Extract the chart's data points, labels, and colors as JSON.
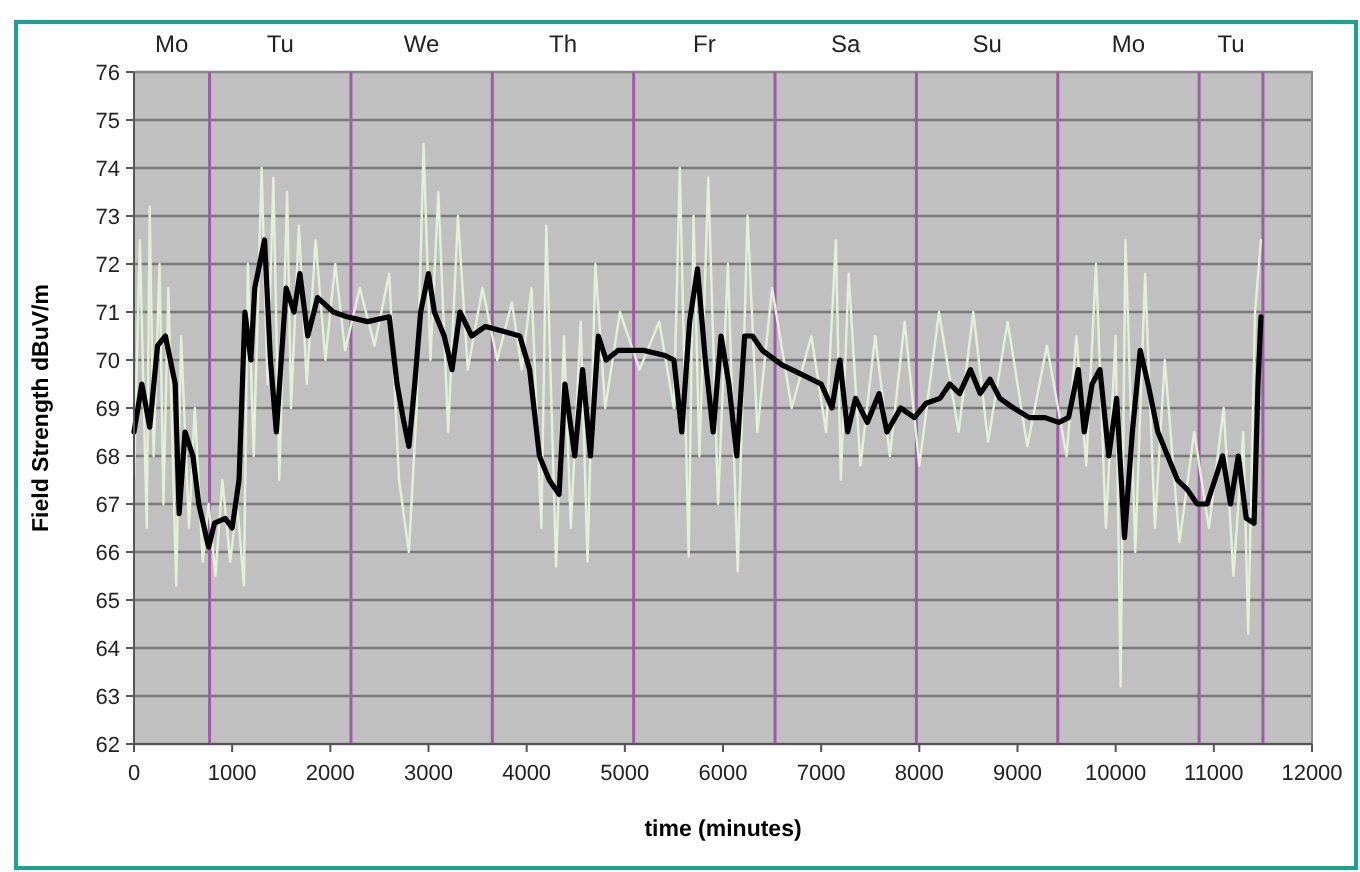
{
  "chart_data": {
    "type": "line",
    "xlabel": "time (minutes)",
    "ylabel": "Field Strength dBuV/m",
    "xlim": [
      0,
      12000
    ],
    "xticks": [
      0,
      1000,
      2000,
      3000,
      4000,
      5000,
      6000,
      7000,
      8000,
      9000,
      10000,
      11000,
      12000
    ],
    "ylim": [
      62,
      76
    ],
    "yticks": [
      62,
      63,
      64,
      65,
      66,
      67,
      68,
      69,
      70,
      71,
      72,
      73,
      74,
      75,
      76
    ],
    "grid": "y",
    "series": [
      {
        "color": "#e2f0d6",
        "x": [
          0,
          60,
          130,
          160,
          200,
          260,
          300,
          350,
          430,
          480,
          560,
          620,
          700,
          760,
          830,
          900,
          980,
          1050,
          1120,
          1160,
          1220,
          1300,
          1360,
          1420,
          1480,
          1560,
          1600,
          1680,
          1760,
          1850,
          1950,
          2050,
          2150,
          2300,
          2450,
          2600,
          2700,
          2800,
          2880,
          2950,
          3020,
          3100,
          3200,
          3300,
          3400,
          3550,
          3700,
          3850,
          3950,
          4050,
          4150,
          4200,
          4300,
          4380,
          4450,
          4550,
          4620,
          4700,
          4800,
          4950,
          5150,
          5350,
          5500,
          5560,
          5650,
          5700,
          5760,
          5850,
          5950,
          6050,
          6150,
          6250,
          6350,
          6500,
          6700,
          6900,
          7050,
          7150,
          7200,
          7280,
          7400,
          7550,
          7700,
          7850,
          8000,
          8200,
          8400,
          8550,
          8700,
          8900,
          9100,
          9300,
          9500,
          9600,
          9700,
          9800,
          9900,
          10000,
          10050,
          10100,
          10200,
          10300,
          10400,
          10500,
          10650,
          10800,
          10950,
          11100,
          11200,
          11300,
          11350,
          11420,
          11480
        ],
        "values": [
          67.5,
          72.5,
          66.5,
          73.2,
          68,
          72,
          67,
          71.5,
          65.3,
          70.5,
          66.5,
          69,
          65.8,
          67,
          65.5,
          67.5,
          65.8,
          67,
          65.3,
          72,
          68,
          74,
          69.5,
          73.8,
          67.5,
          73.5,
          69,
          72.8,
          69.5,
          72.5,
          70,
          72,
          70.2,
          71.5,
          70.3,
          71.8,
          67.5,
          66,
          69,
          74.5,
          70,
          73.5,
          68.5,
          73,
          69.8,
          71.5,
          70,
          71.2,
          69.8,
          71.5,
          66.5,
          72.8,
          65.7,
          70.5,
          66.5,
          70.8,
          65.8,
          72,
          69,
          71,
          69.8,
          70.8,
          69,
          74,
          65.9,
          73,
          68,
          73.8,
          67,
          72,
          65.6,
          73,
          68.5,
          71.5,
          69,
          70.5,
          68.5,
          72.5,
          67.5,
          71.8,
          67.8,
          70.5,
          68,
          70.8,
          67.8,
          71,
          68.5,
          71,
          68.3,
          70.8,
          68.2,
          70.3,
          68,
          70.5,
          67.8,
          72,
          66.5,
          70.5,
          63.2,
          72.5,
          66,
          71.8,
          66.5,
          70,
          66.2,
          68.5,
          66.5,
          69,
          65.5,
          68.5,
          64.3,
          71,
          72.5
        ]
      },
      {
        "color": "#000000",
        "x": [
          0,
          80,
          160,
          240,
          320,
          420,
          460,
          520,
          600,
          660,
          760,
          820,
          930,
          1000,
          1070,
          1130,
          1190,
          1230,
          1330,
          1390,
          1450,
          1550,
          1630,
          1690,
          1770,
          1870,
          2030,
          2170,
          2380,
          2600,
          2680,
          2740,
          2800,
          2860,
          2920,
          3000,
          3060,
          3160,
          3240,
          3320,
          3440,
          3580,
          3760,
          3930,
          4030,
          4130,
          4230,
          4330,
          4390,
          4490,
          4570,
          4650,
          4730,
          4810,
          4930,
          5190,
          5400,
          5500,
          5580,
          5660,
          5740,
          5820,
          5900,
          5980,
          6060,
          6140,
          6220,
          6300,
          6400,
          6600,
          6800,
          7000,
          7110,
          7190,
          7270,
          7350,
          7470,
          7590,
          7670,
          7810,
          7950,
          8070,
          8210,
          8310,
          8410,
          8520,
          8620,
          8720,
          8820,
          8960,
          9120,
          9280,
          9420,
          9520,
          9620,
          9680,
          9760,
          9840,
          9930,
          10010,
          10090,
          10170,
          10250,
          10330,
          10430,
          10530,
          10630,
          10730,
          10830,
          10930,
          11010,
          11090,
          11170,
          11250,
          11330,
          11410,
          11450,
          11480
        ],
        "values": [
          68.5,
          69.5,
          68.6,
          70.3,
          70.5,
          69.5,
          66.8,
          68.5,
          68,
          67,
          66.1,
          66.6,
          66.7,
          66.5,
          67.5,
          71,
          70,
          71.5,
          72.5,
          70,
          68.5,
          71.5,
          71,
          71.8,
          70.5,
          71.3,
          71,
          70.9,
          70.8,
          70.9,
          69.5,
          68.8,
          68.2,
          69.5,
          71,
          71.8,
          71,
          70.5,
          69.8,
          71,
          70.5,
          70.7,
          70.6,
          70.5,
          69.8,
          68,
          67.5,
          67.2,
          69.5,
          68,
          69.8,
          68,
          70.5,
          70,
          70.2,
          70.2,
          70.1,
          70,
          68.5,
          70.8,
          71.9,
          70,
          68.5,
          70.5,
          69.5,
          68,
          70.5,
          70.5,
          70.2,
          69.9,
          69.7,
          69.5,
          69,
          70,
          68.5,
          69.2,
          68.7,
          69.3,
          68.5,
          69,
          68.8,
          69.1,
          69.2,
          69.5,
          69.3,
          69.8,
          69.3,
          69.6,
          69.2,
          69,
          68.8,
          68.8,
          68.7,
          68.8,
          69.8,
          68.5,
          69.5,
          69.8,
          68,
          69.2,
          66.3,
          68.5,
          70.2,
          69.5,
          68.5,
          68,
          67.5,
          67.3,
          67,
          67,
          67.5,
          68,
          67,
          68,
          66.7,
          66.6,
          69.5,
          70.9
        ]
      }
    ],
    "ref_lines": [
      {
        "axis": "x",
        "value": 770,
        "color": "#a05aa8"
      },
      {
        "axis": "x",
        "value": 2210,
        "color": "#a05aa8"
      },
      {
        "axis": "x",
        "value": 3650,
        "color": "#a05aa8"
      },
      {
        "axis": "x",
        "value": 5090,
        "color": "#a05aa8"
      },
      {
        "axis": "x",
        "value": 6530,
        "color": "#a05aa8"
      },
      {
        "axis": "x",
        "value": 7970,
        "color": "#a05aa8"
      },
      {
        "axis": "x",
        "value": 9410,
        "color": "#a05aa8"
      },
      {
        "axis": "x",
        "value": 10850,
        "color": "#a05aa8"
      },
      {
        "axis": "x",
        "value": 11500,
        "color": "#a05aa8"
      }
    ],
    "annotations": [
      "Mo",
      "Tu",
      "We",
      "Th",
      "Fr",
      "Sa",
      "Su",
      "Mo",
      "Tu"
    ]
  }
}
